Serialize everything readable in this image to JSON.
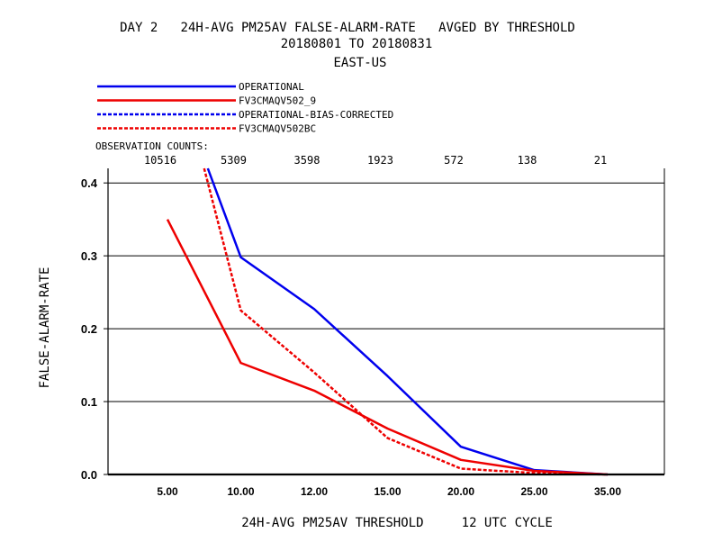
{
  "chart_data": {
    "type": "line",
    "title_line1": "DAY 2   24H-AVG PM25AV FALSE-ALARM-RATE   AVGED BY THRESHOLD",
    "title_line2": "20180801 TO 20180831",
    "title_line3": "EAST-US",
    "xlabel": "24H-AVG PM25AV THRESHOLD     12 UTC CYCLE",
    "ylabel": "FALSE-ALARM-RATE",
    "categories": [
      "5.00",
      "10.00",
      "12.00",
      "15.00",
      "20.00",
      "25.00",
      "35.00"
    ],
    "ylim": [
      0,
      0.42
    ],
    "yticks": [
      "0.0",
      "0.1",
      "0.2",
      "0.3",
      "0.4"
    ],
    "ytick_values": [
      0,
      0.1,
      0.2,
      0.3,
      0.4
    ],
    "grid": true,
    "observation_counts_label": "OBSERVATION COUNTS:",
    "observation_counts": [
      "10516",
      "5309",
      "3598",
      "1923",
      "572",
      "138",
      "21"
    ],
    "legend_placement": "top-left",
    "series": [
      {
        "name": "OPERATIONAL",
        "color": "#0000ee",
        "dash": "solid",
        "values": [
          null,
          0.298,
          0.227,
          0.135,
          0.038,
          0.006,
          0.0
        ]
      },
      {
        "name": "FV3CMAQV502_9",
        "color": "#ee0000",
        "dash": "solid",
        "values": [
          0.35,
          0.153,
          0.115,
          0.063,
          0.02,
          0.005,
          0.0
        ]
      },
      {
        "name": "OPERATIONAL-BIAS-CORRECTED",
        "color": "#0000ee",
        "dash": "dashed",
        "values": [
          null,
          null,
          null,
          null,
          null,
          null,
          null
        ]
      },
      {
        "name": "FV3CMAQV502BC",
        "color": "#ee0000",
        "dash": "dashed",
        "values": [
          null,
          0.225,
          0.14,
          0.05,
          0.008,
          0.002,
          0.0
        ]
      }
    ],
    "extended_start": [
      {
        "series": "OPERATIONAL",
        "x_index": 0.55,
        "value": 0.42
      },
      {
        "series": "FV3CMAQV502BC",
        "x_index": 0.5,
        "value": 0.42
      }
    ]
  }
}
